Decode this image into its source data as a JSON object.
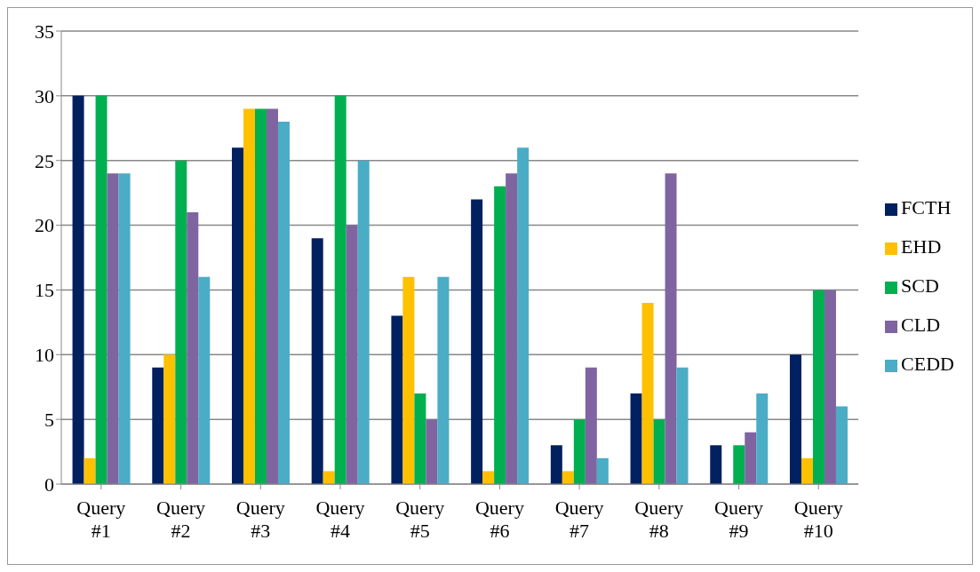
{
  "chart_data": {
    "type": "bar",
    "categories": [
      "Query #1",
      "Query #2",
      "Query #3",
      "Query #4",
      "Query #5",
      "Query #6",
      "Query #7",
      "Query #8",
      "Query #9",
      "Query #10"
    ],
    "series": [
      {
        "name": "FCTH",
        "color": "#002060",
        "values": [
          30,
          9,
          26,
          19,
          13,
          22,
          3,
          7,
          3,
          10
        ]
      },
      {
        "name": "EHD",
        "color": "#ffc000",
        "values": [
          2,
          10,
          29,
          1,
          16,
          1,
          1,
          14,
          0,
          2
        ]
      },
      {
        "name": "SCD",
        "color": "#00b050",
        "values": [
          30,
          25,
          29,
          30,
          7,
          23,
          5,
          5,
          3,
          15
        ]
      },
      {
        "name": "CLD",
        "color": "#8064a2",
        "values": [
          24,
          21,
          29,
          20,
          5,
          24,
          9,
          24,
          4,
          15
        ]
      },
      {
        "name": "CEDD",
        "color": "#4bacc6",
        "values": [
          24,
          16,
          28,
          25,
          16,
          26,
          2,
          9,
          7,
          6
        ]
      }
    ],
    "ylim": [
      0,
      35
    ],
    "yticks": [
      0,
      5,
      10,
      15,
      20,
      25,
      30,
      35
    ],
    "grid": "y",
    "legend": "right"
  }
}
